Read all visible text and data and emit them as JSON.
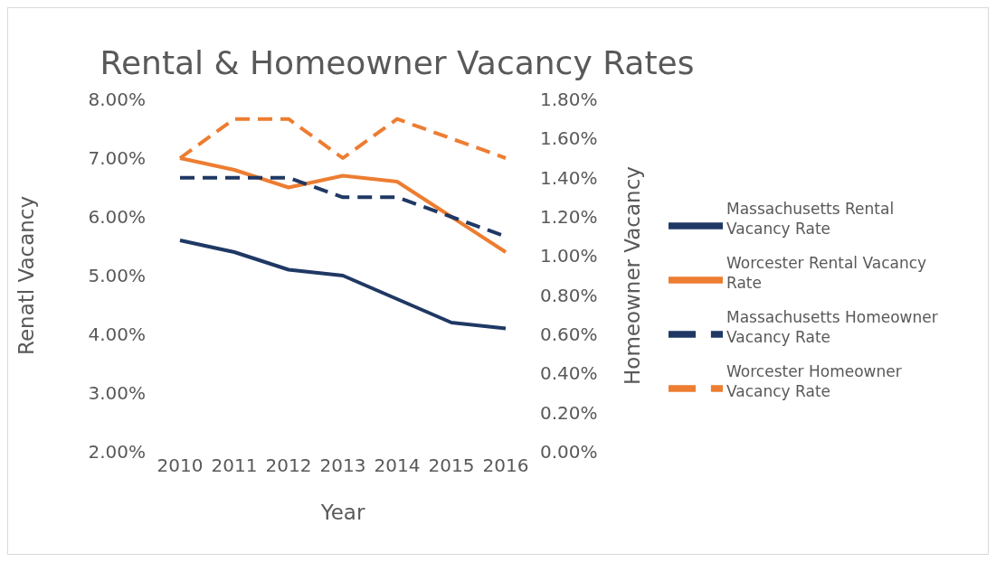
{
  "chart_data": {
    "type": "line",
    "title": "Rental & Homeowner Vacancy Rates",
    "xlabel": "Year",
    "ylabel": "Renatl Vacancy",
    "y2label": "Homeowner Vacancy",
    "categories": [
      "2010",
      "2011",
      "2012",
      "2013",
      "2014",
      "2015",
      "2016"
    ],
    "ylim": [
      2,
      8
    ],
    "yticks": [
      {
        "value": 2,
        "label": "2.00%"
      },
      {
        "value": 3,
        "label": "3.00%"
      },
      {
        "value": 4,
        "label": "4.00%"
      },
      {
        "value": 5,
        "label": "5.00%"
      },
      {
        "value": 6,
        "label": "6.00%"
      },
      {
        "value": 7,
        "label": "7.00%"
      },
      {
        "value": 8,
        "label": "8.00%"
      }
    ],
    "y2lim": [
      0,
      1.8
    ],
    "y2ticks": [
      {
        "value": 0,
        "label": "0.00%"
      },
      {
        "value": 0.2,
        "label": "0.20%"
      },
      {
        "value": 0.4,
        "label": "0.40%"
      },
      {
        "value": 0.6,
        "label": "0.60%"
      },
      {
        "value": 0.8,
        "label": "0.80%"
      },
      {
        "value": 1,
        "label": "1.00%"
      },
      {
        "value": 1.2,
        "label": "1.20%"
      },
      {
        "value": 1.4,
        "label": "1.40%"
      },
      {
        "value": 1.6,
        "label": "1.60%"
      },
      {
        "value": 1.8,
        "label": "1.80%"
      }
    ],
    "legend": "right",
    "marker": "none",
    "series": [
      {
        "name": "Massachusetts Rental Vacancy Rate",
        "color": "#1f3864",
        "line_style": "solid",
        "values": [
          5.6,
          5.4,
          5.1,
          5.0,
          4.6,
          4.2,
          4.1
        ]
      },
      {
        "name": "Worcester Rental Vacancy Rate",
        "color": "#ed7d31",
        "line_style": "solid",
        "values": [
          7.0,
          6.8,
          6.5,
          6.7,
          6.6,
          6.0,
          5.4
        ]
      },
      {
        "name": "Massachusetts Homeowner Vacancy Rate",
        "color": "#1f3864",
        "line_style": "dashed",
        "axis": "y2",
        "values": [
          1.4,
          1.4,
          1.4,
          1.3,
          1.3,
          1.2,
          1.1
        ]
      },
      {
        "name": "Worcester Homeowner Vacancy Rate",
        "color": "#ed7d31",
        "line_style": "dashed",
        "axis": "y2",
        "values": [
          1.5,
          1.7,
          1.7,
          1.5,
          1.7,
          1.6,
          1.5
        ]
      }
    ]
  }
}
